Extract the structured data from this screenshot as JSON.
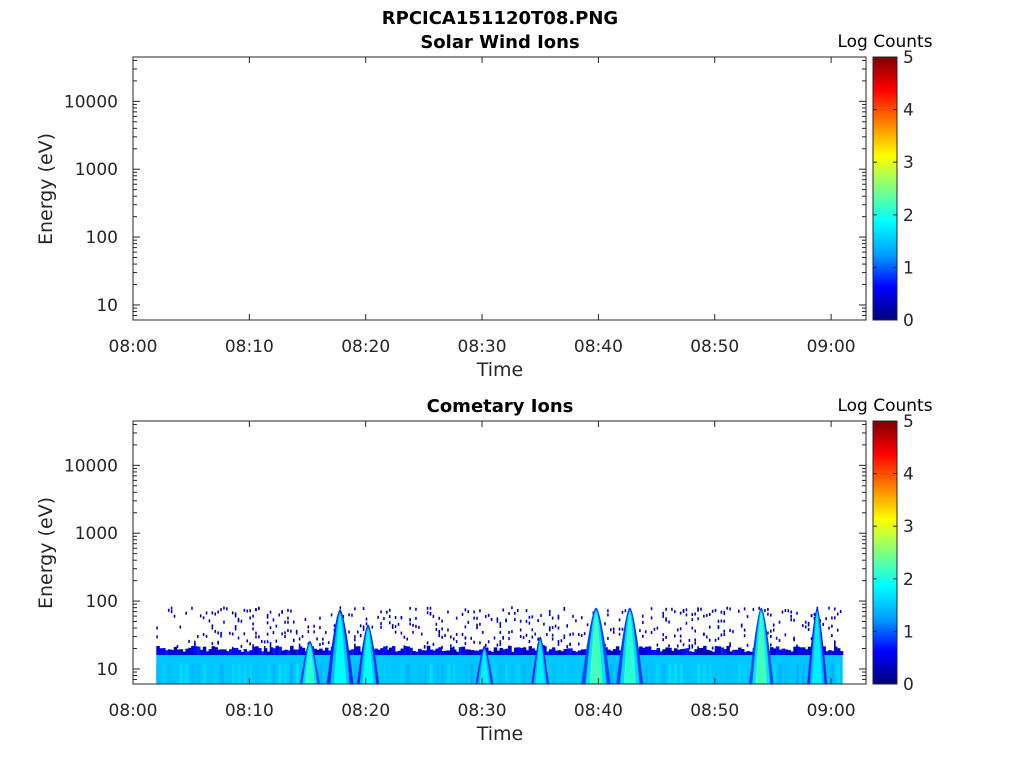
{
  "figure": {
    "title": "RPCICA151120T08.PNG"
  },
  "colorbar": {
    "label": "Log Counts",
    "ticks": [
      "0",
      "1",
      "2",
      "3",
      "4",
      "5"
    ],
    "stops": [
      "#00007f",
      "#0000ff",
      "#00a0ff",
      "#00ffff",
      "#80ff80",
      "#ffff00",
      "#ff8000",
      "#ff0000",
      "#7f0000"
    ]
  },
  "chart_data": [
    {
      "type": "heatmap",
      "title": "Solar Wind Ions",
      "xlabel": "Time",
      "ylabel": "Energy (eV)",
      "y_scale": "log",
      "ylim": [
        6,
        45000
      ],
      "xlim": [
        "08:00",
        "09:03"
      ],
      "x_ticks": [
        "08:00",
        "08:10",
        "08:20",
        "08:30",
        "08:40",
        "08:50",
        "09:00"
      ],
      "y_ticks": [
        "10",
        "100",
        "1000",
        "10000"
      ],
      "color_label": "Log Counts",
      "color_range": [
        0,
        5
      ],
      "features": []
    },
    {
      "type": "heatmap",
      "title": "Cometary Ions",
      "xlabel": "Time",
      "ylabel": "Energy (eV)",
      "y_scale": "log",
      "ylim": [
        6,
        45000
      ],
      "xlim": [
        "08:00",
        "09:03"
      ],
      "x_ticks": [
        "08:00",
        "08:10",
        "08:20",
        "08:30",
        "08:40",
        "08:50",
        "09:00"
      ],
      "y_ticks": [
        "10",
        "100",
        "1000",
        "10000"
      ],
      "color_label": "Log Counts",
      "color_range": [
        0,
        5
      ],
      "data_time_range": [
        "08:02",
        "09:01"
      ],
      "base_band": {
        "energy_min_eV": 6,
        "energy_max_eV": 16,
        "log_counts": 1.5
      },
      "band_edge": {
        "energy_min_eV": 16,
        "energy_max_eV": 22,
        "log_counts": 0.5
      },
      "sparse_counts": {
        "energy_min_eV": 20,
        "energy_max_eV": 80,
        "log_counts": 0.2
      },
      "bursts": [
        {
          "time_min": 15.2,
          "peak_energy_eV": 26,
          "width_min": 0.6,
          "log_counts": 1.9
        },
        {
          "time_min": 17.8,
          "peak_energy_eV": 75,
          "width_min": 0.9,
          "log_counts": 1.7
        },
        {
          "time_min": 20.2,
          "peak_energy_eV": 45,
          "width_min": 0.7,
          "log_counts": 1.7
        },
        {
          "time_min": 30.2,
          "peak_energy_eV": 22,
          "width_min": 0.5,
          "log_counts": 1.6
        },
        {
          "time_min": 35.0,
          "peak_energy_eV": 30,
          "width_min": 0.5,
          "log_counts": 1.6
        },
        {
          "time_min": 39.8,
          "peak_energy_eV": 80,
          "width_min": 1.0,
          "log_counts": 2.0
        },
        {
          "time_min": 42.7,
          "peak_energy_eV": 80,
          "width_min": 0.9,
          "log_counts": 1.9
        },
        {
          "time_min": 54.0,
          "peak_energy_eV": 80,
          "width_min": 0.8,
          "log_counts": 2.0
        },
        {
          "time_min": 58.8,
          "peak_energy_eV": 80,
          "width_min": 0.6,
          "log_counts": 1.6
        }
      ]
    }
  ]
}
